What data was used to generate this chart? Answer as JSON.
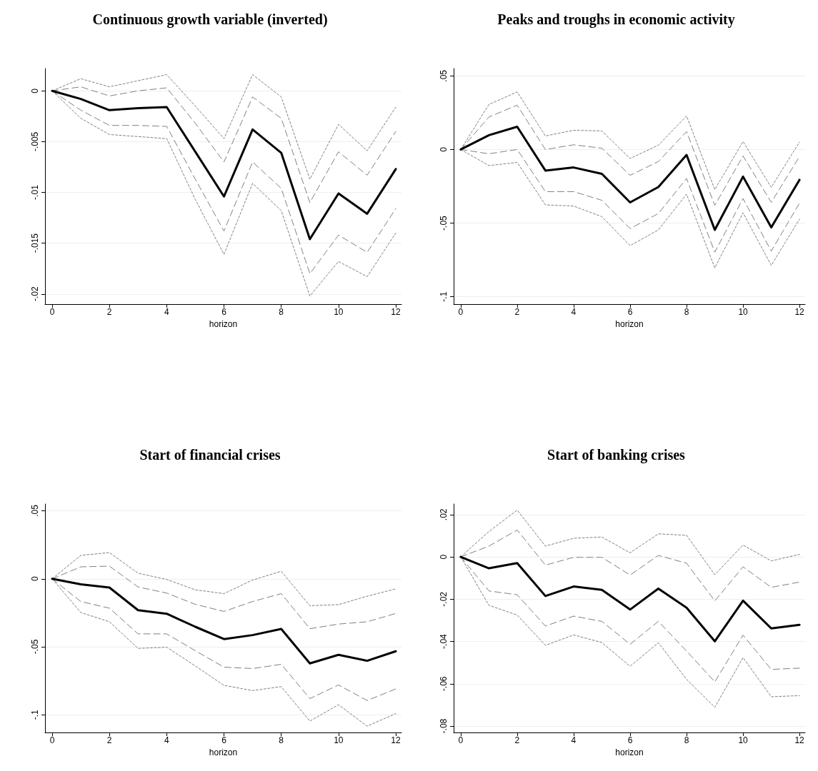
{
  "chart_data": [
    {
      "type": "line",
      "title": "Continuous growth variable (inverted)",
      "xlabel": "horizon",
      "x": [
        0,
        1,
        2,
        3,
        4,
        5,
        6,
        7,
        8,
        9,
        10,
        11,
        12
      ],
      "xlim": [
        -0.25,
        12.2
      ],
      "xticks": [
        0,
        2,
        4,
        6,
        8,
        10,
        12
      ],
      "ylim": [
        -0.021,
        0.0022
      ],
      "yticks": [
        {
          "value": -0.02,
          "label": "-.02"
        },
        {
          "value": -0.015,
          "label": "-.015"
        },
        {
          "value": -0.01,
          "label": "-.01"
        },
        {
          "value": -0.005,
          "label": "-.005"
        },
        {
          "value": 0,
          "label": "0"
        }
      ],
      "grid": "y",
      "marker": "none",
      "series": [
        {
          "color": "#808080",
          "line_style": "dotted",
          "values": [
            0,
            0.0012,
            0.0004,
            0.001,
            0.0016,
            -0.0015,
            -0.0047,
            0.0016,
            -0.0006,
            -0.0087,
            -0.0033,
            -0.0059,
            -0.0016
          ]
        },
        {
          "color": "#808080",
          "line_style": "dashed",
          "values": [
            0,
            0.0004,
            -0.0005,
            0,
            0.0003,
            -0.0032,
            -0.007,
            -0.0006,
            -0.0027,
            -0.011,
            -0.006,
            -0.0083,
            -0.004
          ]
        },
        {
          "color": "#808080",
          "line_style": "dashed",
          "values": [
            0,
            -0.0019,
            -0.0034,
            -0.0034,
            -0.0035,
            -0.0087,
            -0.0138,
            -0.007,
            -0.0096,
            -0.018,
            -0.0142,
            -0.0159,
            -0.0116
          ]
        },
        {
          "color": "#808080",
          "line_style": "dotted",
          "values": [
            0,
            -0.0027,
            -0.0043,
            -0.0045,
            -0.0047,
            -0.0107,
            -0.0161,
            -0.0091,
            -0.0118,
            -0.0202,
            -0.0168,
            -0.0183,
            -0.014
          ]
        },
        {
          "color": "#000000",
          "line_style": "solid",
          "values": [
            0,
            -0.0008,
            -0.0019,
            -0.0017,
            -0.0016,
            -0.006,
            -0.0104,
            -0.0038,
            -0.0061,
            -0.0146,
            -0.0101,
            -0.0121,
            -0.0077
          ]
        }
      ]
    },
    {
      "type": "line",
      "title": "Peaks and troughs in economic activity",
      "xlabel": "horizon",
      "x": [
        0,
        1,
        2,
        3,
        4,
        5,
        6,
        7,
        8,
        9,
        10,
        11,
        12
      ],
      "xlim": [
        -0.25,
        12.2
      ],
      "xticks": [
        0,
        2,
        4,
        6,
        8,
        10,
        12
      ],
      "ylim": [
        -0.105,
        0.055
      ],
      "yticks": [
        {
          "value": -0.1,
          "label": "-.1"
        },
        {
          "value": -0.05,
          "label": "-.05"
        },
        {
          "value": 0,
          "label": "0"
        },
        {
          "value": 0.05,
          "label": ".05"
        }
      ],
      "grid": "y",
      "marker": "none",
      "series": [
        {
          "color": "#808080",
          "line_style": "dotted",
          "values": [
            0,
            0.0306,
            0.0391,
            0.0092,
            0.0131,
            0.0126,
            -0.0061,
            0.0029,
            0.0228,
            -0.0272,
            0.0054,
            -0.0257,
            0.0051
          ]
        },
        {
          "color": "#808080",
          "line_style": "dashed",
          "values": [
            0,
            0.0221,
            0.0301,
            0,
            0.0032,
            0.0009,
            -0.0175,
            -0.0082,
            0.0122,
            -0.0379,
            -0.0044,
            -0.0359,
            -0.0048
          ]
        },
        {
          "color": "#808080",
          "line_style": "dashed",
          "values": [
            0,
            -0.0029,
            0,
            -0.0286,
            -0.0286,
            -0.0345,
            -0.0537,
            -0.0435,
            -0.0197,
            -0.0697,
            -0.0333,
            -0.069,
            -0.0364
          ]
        },
        {
          "color": "#808080",
          "line_style": "dotted",
          "values": [
            0,
            -0.0109,
            -0.0088,
            -0.0376,
            -0.0384,
            -0.0456,
            -0.0653,
            -0.0546,
            -0.0303,
            -0.0804,
            -0.043,
            -0.0787,
            -0.0473
          ]
        },
        {
          "color": "#000000",
          "line_style": "solid",
          "values": [
            0,
            0.0097,
            0.0155,
            -0.0143,
            -0.0122,
            -0.0165,
            -0.0359,
            -0.0255,
            -0.0037,
            -0.0546,
            -0.0184,
            -0.0529,
            -0.0206
          ]
        }
      ]
    },
    {
      "type": "line",
      "title": "Start of financial crises",
      "xlabel": "horizon",
      "x": [
        0,
        1,
        2,
        3,
        4,
        5,
        6,
        7,
        8,
        9,
        10,
        11,
        12
      ],
      "xlim": [
        -0.25,
        12.2
      ],
      "xticks": [
        0,
        2,
        4,
        6,
        8,
        10,
        12
      ],
      "ylim": [
        -0.113,
        0.055
      ],
      "yticks": [
        {
          "value": -0.1,
          "label": "-.1"
        },
        {
          "value": -0.05,
          "label": "-.05"
        },
        {
          "value": 0,
          "label": "0"
        },
        {
          "value": 0.05,
          "label": ".05"
        }
      ],
      "grid": "y",
      "marker": "none",
      "series": [
        {
          "color": "#808080",
          "line_style": "dotted",
          "values": [
            0,
            0.0172,
            0.0193,
            0.0041,
            -0.0005,
            -0.0081,
            -0.0109,
            -0.0009,
            0.0055,
            -0.0198,
            -0.019,
            -0.0128,
            -0.0074
          ]
        },
        {
          "color": "#808080",
          "line_style": "dashed",
          "values": [
            0,
            0.0088,
            0.0093,
            -0.006,
            -0.0105,
            -0.0188,
            -0.024,
            -0.0167,
            -0.0109,
            -0.0367,
            -0.0333,
            -0.0316,
            -0.0255
          ]
        },
        {
          "color": "#808080",
          "line_style": "dashed",
          "values": [
            0,
            -0.0167,
            -0.0216,
            -0.0405,
            -0.0405,
            -0.0529,
            -0.065,
            -0.066,
            -0.0629,
            -0.0881,
            -0.0781,
            -0.0895,
            -0.081
          ]
        },
        {
          "color": "#808080",
          "line_style": "dotted",
          "values": [
            0,
            -0.0248,
            -0.0316,
            -0.0512,
            -0.0503,
            -0.0641,
            -0.0784,
            -0.0822,
            -0.0793,
            -0.1047,
            -0.0926,
            -0.1084,
            -0.0991
          ]
        },
        {
          "color": "#000000",
          "line_style": "solid",
          "values": [
            0,
            -0.0041,
            -0.0064,
            -0.0231,
            -0.0257,
            -0.0353,
            -0.0443,
            -0.0414,
            -0.0369,
            -0.0622,
            -0.0559,
            -0.0603,
            -0.0533
          ]
        }
      ]
    },
    {
      "type": "line",
      "title": "Start of banking crises",
      "xlabel": "horizon",
      "x": [
        0,
        1,
        2,
        3,
        4,
        5,
        6,
        7,
        8,
        9,
        10,
        11,
        12
      ],
      "xlim": [
        -0.25,
        12.2
      ],
      "xticks": [
        0,
        2,
        4,
        6,
        8,
        10,
        12
      ],
      "ylim": [
        -0.083,
        0.025
      ],
      "yticks": [
        {
          "value": -0.08,
          "label": "-.08"
        },
        {
          "value": -0.06,
          "label": "-.06"
        },
        {
          "value": -0.04,
          "label": "-.04"
        },
        {
          "value": -0.02,
          "label": "-.02"
        },
        {
          "value": 0,
          "label": "0"
        },
        {
          "value": 0.02,
          "label": ".02"
        }
      ],
      "grid": "y",
      "marker": "none",
      "series": [
        {
          "color": "#808080",
          "line_style": "dotted",
          "values": [
            0,
            0.012,
            0.0221,
            0.0051,
            0.0088,
            0.0094,
            0.0019,
            0.0109,
            0.0102,
            -0.0084,
            0.0056,
            -0.0019,
            0.0012
          ]
        },
        {
          "color": "#808080",
          "line_style": "dashed",
          "values": [
            0,
            0.0051,
            0.0127,
            -0.0039,
            -0.0002,
            -0.0002,
            -0.0086,
            0.0007,
            -0.003,
            -0.0208,
            -0.0047,
            -0.0144,
            -0.0119
          ]
        },
        {
          "color": "#808080",
          "line_style": "dashed",
          "values": [
            0,
            -0.0161,
            -0.0179,
            -0.0327,
            -0.028,
            -0.0305,
            -0.0413,
            -0.0305,
            -0.0445,
            -0.0591,
            -0.037,
            -0.0532,
            -0.0526
          ]
        },
        {
          "color": "#808080",
          "line_style": "dotted",
          "values": [
            0,
            -0.0229,
            -0.0275,
            -0.0418,
            -0.0369,
            -0.0405,
            -0.0517,
            -0.0406,
            -0.0579,
            -0.0711,
            -0.0476,
            -0.0661,
            -0.0656
          ]
        },
        {
          "color": "#000000",
          "line_style": "solid",
          "values": [
            0,
            -0.0054,
            -0.0029,
            -0.0185,
            -0.014,
            -0.0156,
            -0.0249,
            -0.015,
            -0.024,
            -0.0399,
            -0.0207,
            -0.0338,
            -0.0321
          ]
        }
      ]
    }
  ]
}
